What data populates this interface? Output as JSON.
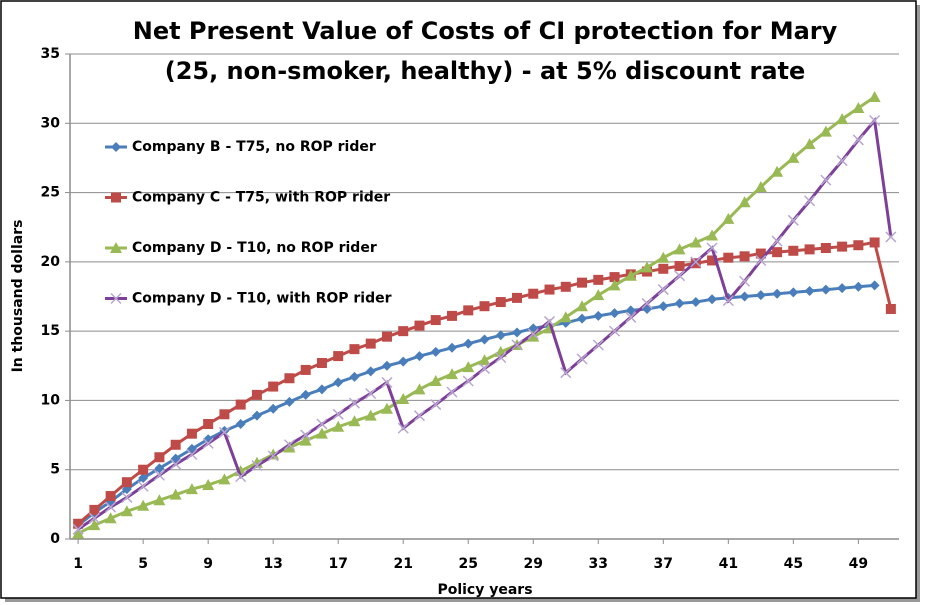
{
  "chart_data": {
    "type": "line",
    "title": [
      "Net Present Value of Costs  of CI protection for Mary",
      "(25, non-smoker, healthy) - at  5% discount rate"
    ],
    "x_label": "Policy years",
    "y_label": "In thousand dollars",
    "x": [
      1,
      2,
      3,
      4,
      5,
      6,
      7,
      8,
      9,
      10,
      11,
      12,
      13,
      14,
      15,
      16,
      17,
      18,
      19,
      20,
      21,
      22,
      23,
      24,
      25,
      26,
      27,
      28,
      29,
      30,
      31,
      32,
      33,
      34,
      35,
      36,
      37,
      38,
      39,
      40,
      41,
      42,
      43,
      44,
      45,
      46,
      47,
      48,
      49,
      50,
      51
    ],
    "xlim": [
      0.5,
      51.5
    ],
    "xticks": [
      1,
      5,
      9,
      13,
      17,
      21,
      25,
      29,
      33,
      37,
      41,
      45,
      49
    ],
    "ylim": [
      0,
      35
    ],
    "yticks": [
      0,
      5,
      10,
      15,
      20,
      25,
      30,
      35
    ],
    "grid": true,
    "legend": "upper left",
    "series": [
      {
        "name": "Company B - T75, no ROP rider",
        "color": "#4a7ebb",
        "marker": "diamond",
        "values": [
          1.0,
          1.9,
          2.7,
          3.6,
          4.4,
          5.1,
          5.8,
          6.5,
          7.2,
          7.8,
          8.3,
          8.9,
          9.4,
          9.9,
          10.4,
          10.8,
          11.3,
          11.7,
          12.1,
          12.5,
          12.8,
          13.2,
          13.5,
          13.8,
          14.1,
          14.4,
          14.7,
          14.9,
          15.2,
          15.4,
          15.6,
          15.9,
          16.1,
          16.3,
          16.5,
          16.6,
          16.8,
          17.0,
          17.1,
          17.3,
          17.4,
          17.5,
          17.6,
          17.7,
          17.8,
          17.9,
          18.0,
          18.1,
          18.2,
          18.3,
          null
        ]
      },
      {
        "name": "Company C - T75, with ROP rider",
        "color": "#be4b48",
        "marker": "square",
        "values": [
          1.1,
          2.1,
          3.1,
          4.1,
          5.0,
          5.9,
          6.8,
          7.6,
          8.3,
          9.0,
          9.7,
          10.4,
          11.0,
          11.6,
          12.2,
          12.7,
          13.2,
          13.7,
          14.1,
          14.6,
          15.0,
          15.4,
          15.8,
          16.1,
          16.5,
          16.8,
          17.1,
          17.4,
          17.7,
          18.0,
          18.2,
          18.5,
          18.7,
          18.9,
          19.1,
          19.3,
          19.5,
          19.7,
          19.9,
          20.1,
          20.3,
          20.4,
          20.6,
          20.7,
          20.8,
          20.9,
          21.0,
          21.1,
          21.2,
          21.4,
          16.6
        ]
      },
      {
        "name": "Company D - T10, no ROP rider",
        "color": "#98b954",
        "marker": "triangle",
        "values": [
          0.4,
          1.0,
          1.5,
          2.0,
          2.4,
          2.8,
          3.2,
          3.6,
          3.9,
          4.3,
          4.9,
          5.5,
          6.1,
          6.6,
          7.1,
          7.6,
          8.1,
          8.5,
          8.9,
          9.4,
          10.1,
          10.8,
          11.4,
          11.9,
          12.4,
          12.9,
          13.5,
          14.0,
          14.6,
          15.2,
          16.0,
          16.8,
          17.6,
          18.3,
          19.0,
          19.6,
          20.3,
          20.9,
          21.4,
          21.9,
          23.1,
          24.3,
          25.4,
          26.5,
          27.5,
          28.5,
          29.4,
          30.3,
          31.1,
          31.9,
          null
        ]
      },
      {
        "name": "Company D - T10, with ROP rider",
        "color": "#7d3f98",
        "marker": "x",
        "values": [
          0.7,
          1.5,
          2.3,
          3.0,
          3.8,
          4.6,
          5.4,
          6.1,
          6.9,
          7.7,
          4.5,
          5.3,
          6.0,
          6.8,
          7.5,
          8.3,
          9.0,
          9.8,
          10.5,
          11.3,
          8.0,
          8.9,
          9.7,
          10.6,
          11.4,
          12.3,
          13.1,
          14.0,
          14.8,
          15.7,
          12.0,
          13.0,
          14.0,
          15.0,
          16.0,
          17.0,
          18.0,
          19.0,
          20.0,
          21.0,
          17.2,
          18.6,
          20.1,
          21.5,
          23.0,
          24.4,
          25.9,
          27.3,
          28.8,
          30.2,
          21.8
        ]
      }
    ]
  }
}
